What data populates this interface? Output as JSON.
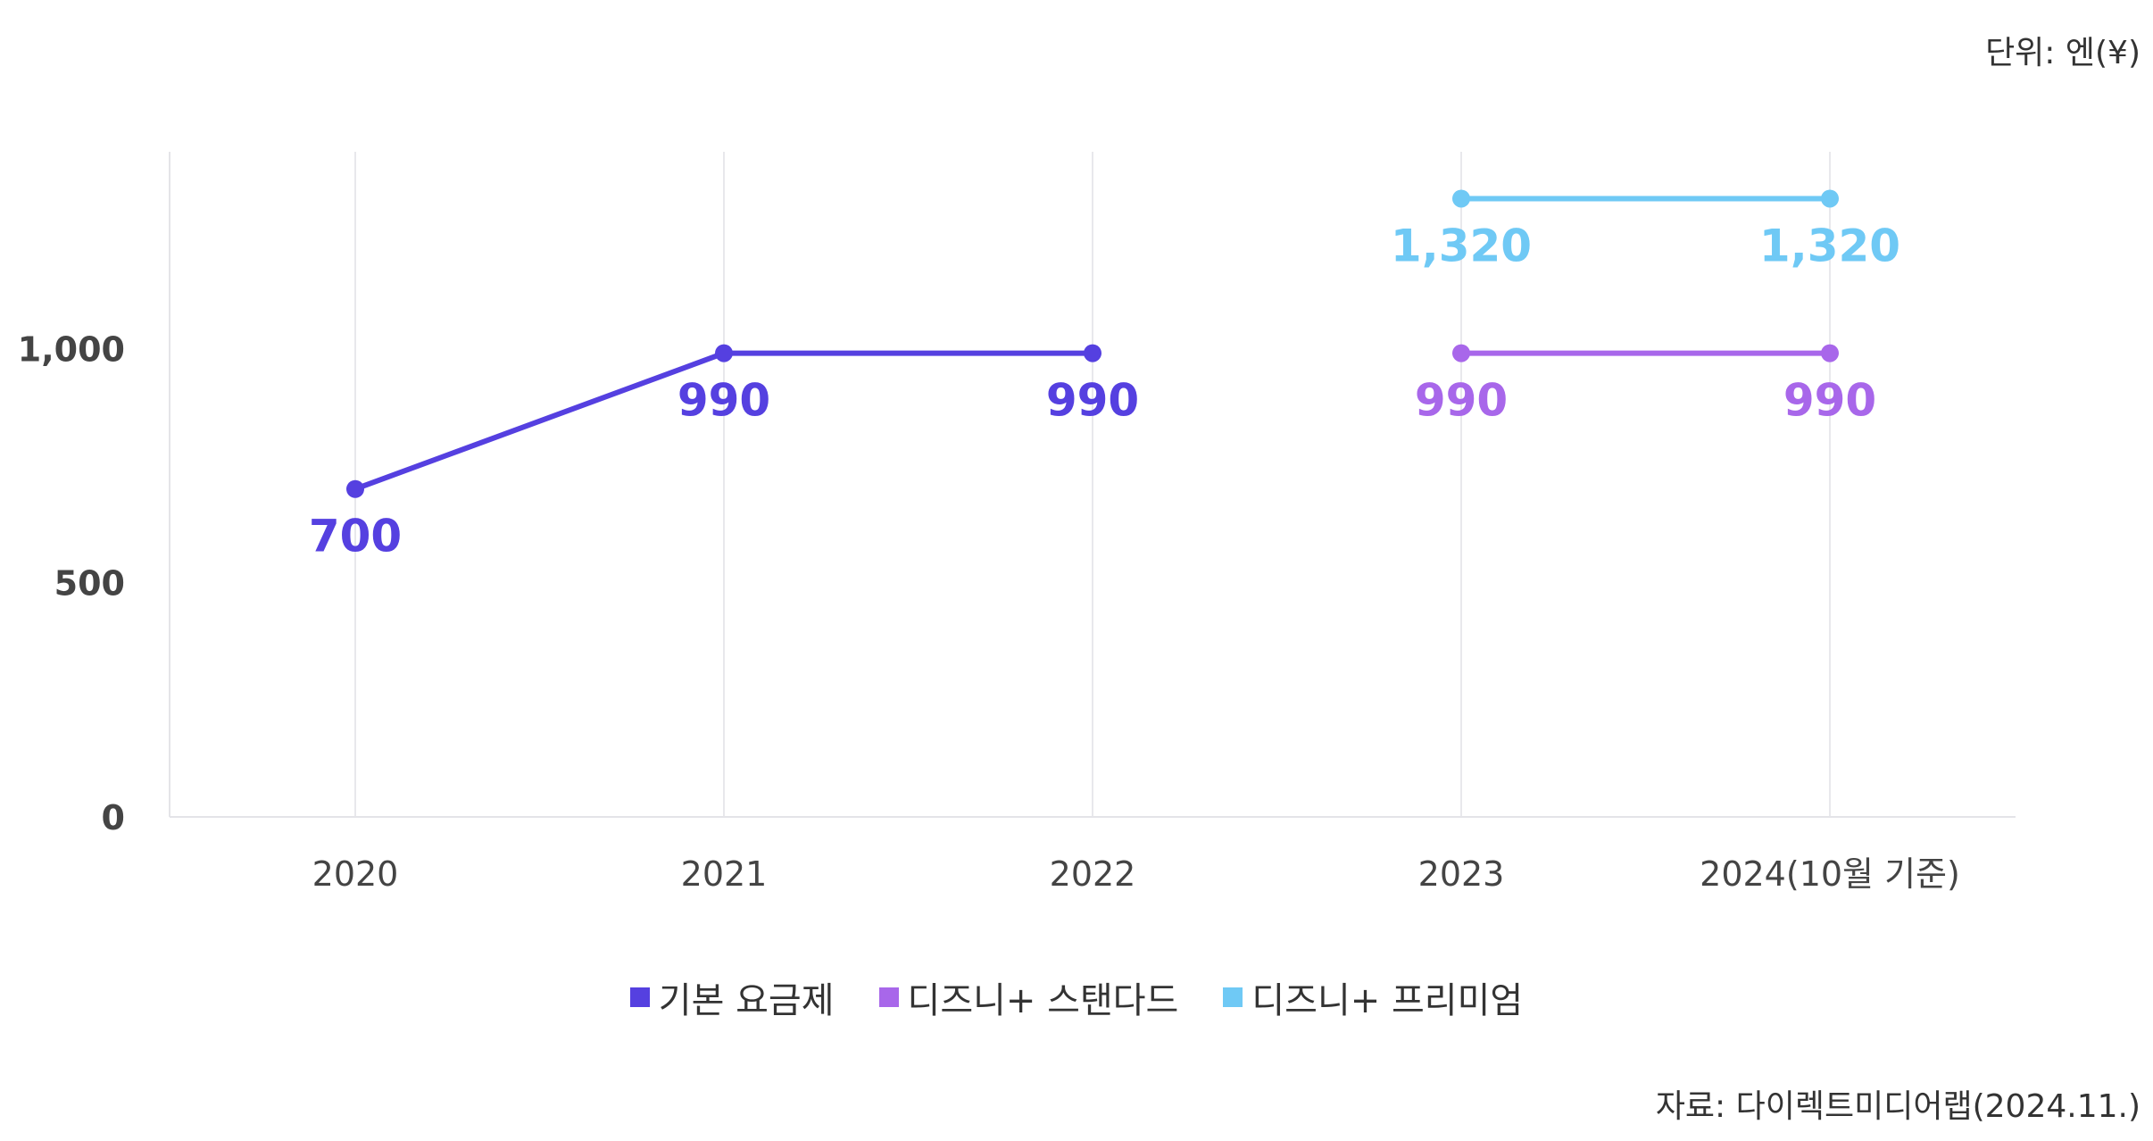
{
  "unit_note": "단위: 엔(¥)",
  "source_note": "자료: 다이렉트미디어랩(2024.11.)",
  "chart_data": {
    "type": "line",
    "title": "",
    "xlabel": "",
    "ylabel": "",
    "categories": [
      "2020",
      "2021",
      "2022",
      "2023",
      "2024(10월 기준)"
    ],
    "yticks": [
      0,
      500,
      1000
    ],
    "ytick_labels": [
      "0",
      "500",
      "1,000"
    ],
    "ylim": [
      0,
      1420
    ],
    "grid": "vertical",
    "legend_position": "bottom",
    "series": [
      {
        "name": "기본 요금제",
        "color": "#5540E0",
        "values": [
          700,
          990,
          990,
          null,
          null
        ],
        "labels": [
          "700",
          "990",
          "990",
          "",
          ""
        ]
      },
      {
        "name": "디즈니+ 스탠다드",
        "color": "#A867EA",
        "values": [
          null,
          null,
          null,
          990,
          990
        ],
        "labels": [
          "",
          "",
          "",
          "990",
          "990"
        ]
      },
      {
        "name": "디즈니+ 프리미엄",
        "color": "#6FC9F5",
        "values": [
          null,
          null,
          null,
          1320,
          1320
        ],
        "labels": [
          "",
          "",
          "",
          "1,320",
          "1,320"
        ]
      }
    ]
  }
}
